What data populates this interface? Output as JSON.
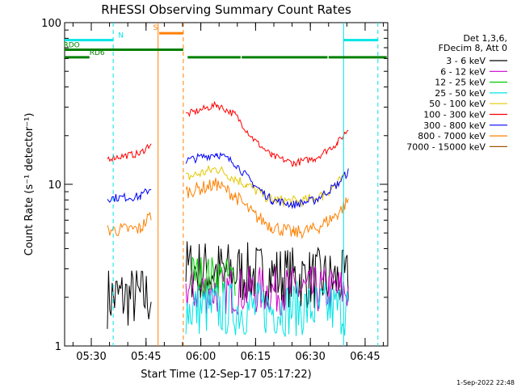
{
  "chart_data": {
    "type": "line",
    "title": "RHESSI Observing Summary Count Rates",
    "xlabel": "Start Time (12-Sep-17 05:17:22)",
    "ylabel": "Count Rate (s⁻¹ detector⁻¹)",
    "yscale": "log",
    "ylim": [
      1,
      100
    ],
    "xlim_minutes": [
      5.3,
      93.8
    ],
    "xticks": [
      {
        "t": 12.6,
        "label": "05:30"
      },
      {
        "t": 27.6,
        "label": "05:45"
      },
      {
        "t": 42.6,
        "label": "06:00"
      },
      {
        "t": 57.6,
        "label": "06:15"
      },
      {
        "t": 72.6,
        "label": "06:30"
      },
      {
        "t": 87.6,
        "label": "06:45"
      }
    ],
    "yticks": [
      {
        "v": 1,
        "label": "1"
      },
      {
        "v": 10,
        "label": "10"
      },
      {
        "v": 100,
        "label": "100"
      }
    ],
    "legend_position": "right",
    "legend_header": [
      "Det 1,3,6,",
      "FDecim 8, Att 0"
    ],
    "series": [
      {
        "name": "3 - 6 keV",
        "color": "#000000",
        "segments": [
          [
            [
              17,
              2.0
            ],
            [
              29,
              2.0
            ]
          ],
          [
            [
              38.5,
              3.0
            ],
            [
              83,
              2.5
            ]
          ]
        ],
        "noise": 0.45
      },
      {
        "name": "6 - 12 keV",
        "color": "#cc00cc",
        "segments": [
          [
            [
              38.5,
              2.2
            ],
            [
              83,
              2.2
            ]
          ]
        ],
        "noise": 0.35
      },
      {
        "name": "12 - 25 keV",
        "color": "#00cc00",
        "segments": [
          [
            [
              40,
              2.8
            ],
            [
              52,
              2.6
            ]
          ]
        ],
        "noise": 0.3
      },
      {
        "name": "25 - 50 keV",
        "color": "#00e5e5",
        "segments": [
          [
            [
              38.5,
              1.7
            ],
            [
              83,
              1.7
            ]
          ]
        ],
        "noise": 0.4
      },
      {
        "name": "50 - 100 keV",
        "color": "#e5c800",
        "segments": [
          [
            [
              38.5,
              11
            ],
            [
              47,
              12.5
            ],
            [
              55,
              10
            ],
            [
              62,
              8
            ],
            [
              70,
              7.8
            ],
            [
              76,
              8.5
            ],
            [
              82,
              11
            ]
          ]
        ],
        "noise": 0.08
      },
      {
        "name": "100 - 300 keV",
        "color": "#ff0000",
        "segments": [
          [
            [
              17,
              14.5
            ],
            [
              26,
              15.5
            ],
            [
              29,
              18
            ]
          ],
          [
            [
              38.5,
              27
            ],
            [
              47,
              31
            ],
            [
              52,
              27
            ],
            [
              57,
              19
            ],
            [
              62,
              15
            ],
            [
              68,
              13.5
            ],
            [
              74,
              14.5
            ],
            [
              80,
              18
            ],
            [
              83,
              22
            ]
          ]
        ],
        "noise": 0.05
      },
      {
        "name": "300 - 800 keV",
        "color": "#0000ff",
        "segments": [
          [
            [
              17,
              8.2
            ],
            [
              26,
              8.4
            ],
            [
              29,
              9.5
            ]
          ],
          [
            [
              38.5,
              14
            ],
            [
              47,
              15.5
            ],
            [
              52,
              13.5
            ],
            [
              57,
              10
            ],
            [
              62,
              8
            ],
            [
              68,
              7.5
            ],
            [
              74,
              8
            ],
            [
              80,
              10
            ],
            [
              83,
              12
            ]
          ]
        ],
        "noise": 0.06
      },
      {
        "name": "800 - 7000 keV",
        "color": "#ff8000",
        "segments": [
          [
            [
              17,
              5.2
            ],
            [
              26,
              5.3
            ],
            [
              29,
              6.5
            ]
          ],
          [
            [
              38.5,
              9
            ],
            [
              47,
              10
            ],
            [
              52,
              8.5
            ],
            [
              57,
              6.5
            ],
            [
              62,
              5.5
            ],
            [
              68,
              5
            ],
            [
              74,
              5.3
            ],
            [
              80,
              6.5
            ],
            [
              83,
              8
            ]
          ]
        ],
        "noise": 0.1
      },
      {
        "name": "7000 - 15000 keV",
        "color": "#a05a00",
        "segments": [],
        "noise": 0
      }
    ],
    "flag_bars": [
      {
        "label": "N",
        "color": "#00e5e5",
        "level": 78,
        "label_at": 20.7,
        "ranges": [
          [
            5.3,
            18.6
          ],
          [
            81.7,
            91.1
          ]
        ]
      },
      {
        "label": "S",
        "color": "#ff8000",
        "level": 86,
        "label_at": 30.2,
        "ranges": [
          [
            31.2,
            37.8
          ]
        ]
      },
      {
        "label": "RDO",
        "color": "#008000",
        "level": 68,
        "label_at": 7.2,
        "ranges": [
          [
            5.3,
            37.8
          ]
        ]
      },
      {
        "label": "RD6",
        "color": "#008000",
        "level": 61,
        "label_at": 14.2,
        "ranges": [
          [
            5.3,
            12.1
          ],
          [
            39.0,
            53.5
          ],
          [
            53.8,
            77.3
          ],
          [
            77.6,
            93.5
          ]
        ]
      }
    ],
    "vlines": [
      {
        "t": 18.6,
        "color": "#00e5e5",
        "style": "dashed"
      },
      {
        "t": 81.7,
        "color": "#00e5e5",
        "style": "solid"
      },
      {
        "t": 91.1,
        "color": "#00e5e5",
        "style": "dashed"
      },
      {
        "t": 30.9,
        "color": "#ff8000",
        "style": "solid"
      },
      {
        "t": 37.8,
        "color": "#ff8000",
        "style": "dashed"
      }
    ]
  },
  "footer": {
    "timestamp": "1-Sep-2022 22:48"
  }
}
